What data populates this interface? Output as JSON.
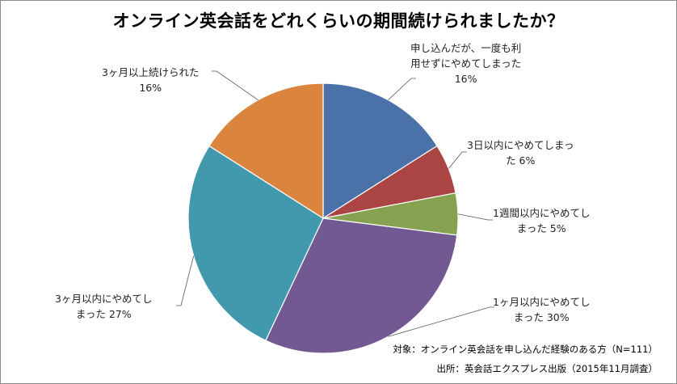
{
  "title": "オンライン英会話をどれくらいの期間続けられましたか？",
  "chart_data": {
    "type": "pie",
    "start_angle": "12 o'clock",
    "direction": "clockwise",
    "legend": "none (data labels with leader lines)",
    "slices": [
      {
        "label_lines": [
          "申し込んだが、一度も利",
          "用せずにやめてしまった"
        ],
        "pct_text": "16%",
        "value": 16,
        "color": "#4a72a8"
      },
      {
        "label_lines": [
          "3日以内にやめてしまっ",
          "た 6%"
        ],
        "pct_text": "",
        "value": 6,
        "color": "#aa4543"
      },
      {
        "label_lines": [
          "1週間以内にやめてし",
          "まった 5%"
        ],
        "pct_text": "",
        "value": 5,
        "color": "#85a250"
      },
      {
        "label_lines": [
          "1ヶ月以内にやめてし",
          "まった 30%"
        ],
        "pct_text": "",
        "value": 30,
        "color": "#725992"
      },
      {
        "label_lines": [
          "3ヶ月以内にやめてし",
          "まった 27%"
        ],
        "pct_text": "",
        "value": 27,
        "color": "#4299ae"
      },
      {
        "label_lines": [
          "3ヶ月以上続けられた"
        ],
        "pct_text": "16%",
        "value": 16,
        "color": "#db843d"
      }
    ]
  },
  "footnotes": {
    "target": "対象：オンライン英会話を申し込んだ経験のある方（N=111）",
    "source": "出所：英会話エクスプレス出版（2015年11月調査）"
  }
}
